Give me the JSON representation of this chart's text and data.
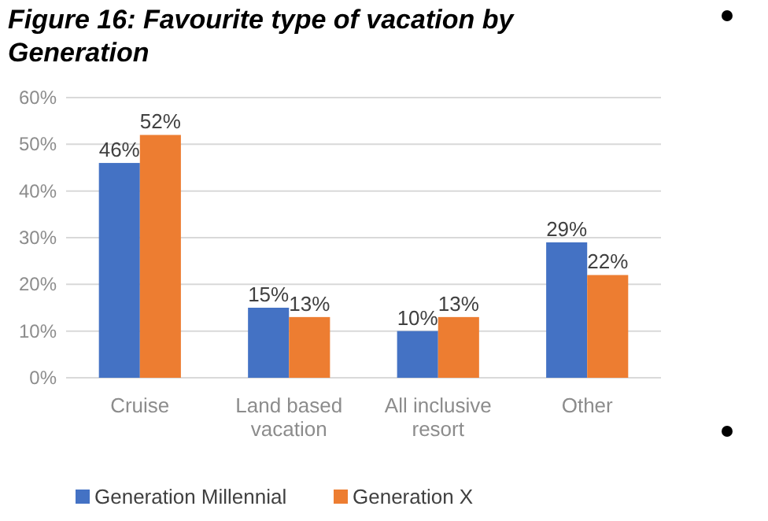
{
  "chart_data": {
    "type": "bar",
    "title": "Figure 16: Favourite type of vacation by Generation",
    "categories": [
      "Cruise",
      "Land based vacation",
      "All inclusive resort",
      "Other"
    ],
    "series": [
      {
        "name": "Generation Millennial",
        "color": "#4472c4",
        "values": [
          46,
          15,
          10,
          29
        ],
        "value_labels": [
          "46%",
          "15%",
          "10%",
          "29%"
        ]
      },
      {
        "name": "Generation X",
        "color": "#ed7d31",
        "values": [
          52,
          13,
          13,
          22
        ],
        "value_labels": [
          "52%",
          "13%",
          "13%",
          "22%"
        ]
      }
    ],
    "ylim": [
      0,
      60
    ],
    "yticks": [
      {
        "value": 0,
        "label": "0%"
      },
      {
        "value": 10,
        "label": "10%"
      },
      {
        "value": 20,
        "label": "20%"
      },
      {
        "value": 30,
        "label": "30%"
      },
      {
        "value": 40,
        "label": "40%"
      },
      {
        "value": 50,
        "label": "50%"
      },
      {
        "value": 60,
        "label": "60%"
      }
    ],
    "grid": "y",
    "legend": "bottom"
  }
}
